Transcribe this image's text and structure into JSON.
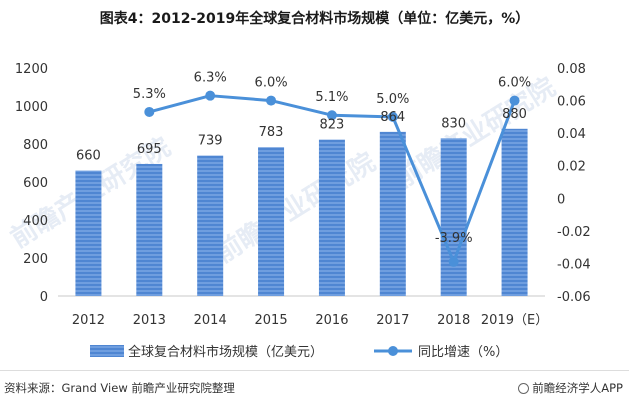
{
  "chart_data": {
    "type": "bar+line",
    "title": "图表4：2012-2019年全球复合材料市场规模（单位：亿美元，%）",
    "categories": [
      "2012",
      "2013",
      "2014",
      "2015",
      "2016",
      "2017",
      "2018",
      "2019（E）"
    ],
    "series": [
      {
        "name": "全球复合材料市场规模（亿美元）",
        "type": "bar",
        "axis": "left",
        "color": "#5b8fd6",
        "values": [
          660,
          695,
          739,
          783,
          823,
          864,
          830,
          880
        ],
        "labels": [
          "660",
          "695",
          "739",
          "783",
          "823",
          "864",
          "830",
          "880"
        ]
      },
      {
        "name": "同比增速（%）",
        "type": "line",
        "axis": "right",
        "color": "#4a90d9",
        "values": [
          null,
          0.053,
          0.063,
          0.06,
          0.051,
          0.05,
          -0.039,
          0.06
        ],
        "labels": [
          "",
          "5.3%",
          "6.3%",
          "6.0%",
          "5.1%",
          "5.0%",
          "-3.9%",
          "6.0%"
        ]
      }
    ],
    "y_left": {
      "min": 0,
      "max": 1200,
      "ticks": [
        "0",
        "200",
        "400",
        "600",
        "800",
        "1000",
        "1200"
      ]
    },
    "y_right": {
      "min": -0.06,
      "max": 0.08,
      "ticks": [
        "-0.06",
        "-0.04",
        "-0.02",
        "0",
        "0.02",
        "0.04",
        "0.06",
        "0.08"
      ]
    },
    "legend_position": "bottom"
  },
  "watermark": "前瞻产业研究院",
  "footer": {
    "source": "资料来源：Grand View 前瞻产业研究院整理",
    "brand": "前瞻经济学人APP"
  }
}
